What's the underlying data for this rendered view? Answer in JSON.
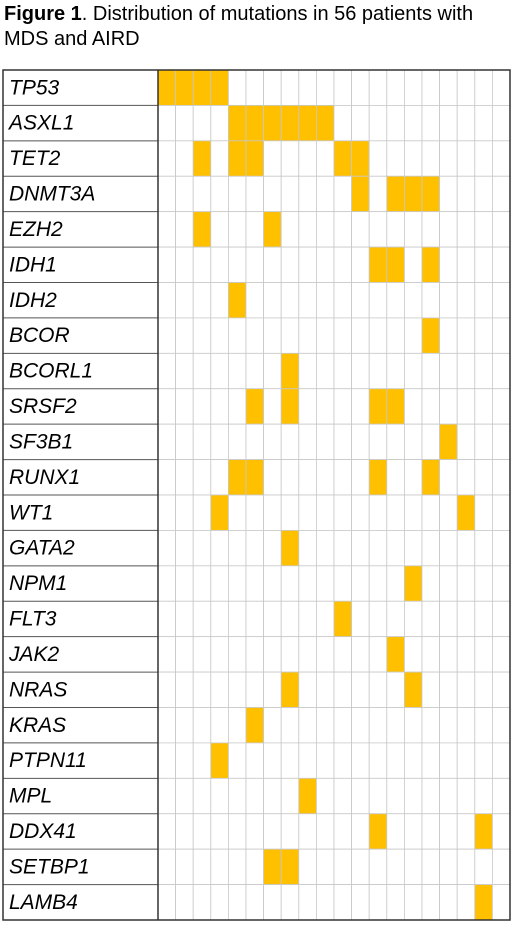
{
  "chart_data": {
    "type": "oncoprint",
    "title_label": "Figure 1",
    "title": ". Distribution of mutations in 56 patients with MDS and AIRD",
    "mutated_color": "#ffc000",
    "genes": [
      "TP53",
      "ASXL1",
      "TET2",
      "DNMT3A",
      "EZH2",
      "IDH1",
      "IDH2",
      "BCOR",
      "BCORL1",
      "SRSF2",
      "SF3B1",
      "RUNX1",
      "WT1",
      "GATA2",
      "NPM1",
      "FLT3",
      "JAK2",
      "NRAS",
      "KRAS",
      "PTPN11",
      "MPL",
      "DDX41",
      "SETBP1",
      "LAMB4"
    ],
    "matrix": [
      [
        1,
        1,
        1,
        1,
        0,
        0,
        0,
        0,
        0,
        0,
        0,
        0,
        0,
        0,
        0,
        0,
        0,
        0,
        0,
        0
      ],
      [
        0,
        0,
        0,
        0,
        1,
        1,
        1,
        1,
        1,
        1,
        0,
        0,
        0,
        0,
        0,
        0,
        0,
        0,
        0,
        0
      ],
      [
        0,
        0,
        1,
        0,
        1,
        1,
        0,
        0,
        0,
        0,
        1,
        1,
        0,
        0,
        0,
        0,
        0,
        0,
        0,
        0
      ],
      [
        0,
        0,
        0,
        0,
        0,
        0,
        0,
        0,
        0,
        0,
        0,
        1,
        0,
        1,
        1,
        1,
        0,
        0,
        0,
        0
      ],
      [
        0,
        0,
        1,
        0,
        0,
        0,
        1,
        0,
        0,
        0,
        0,
        0,
        0,
        0,
        0,
        0,
        0,
        0,
        0,
        0
      ],
      [
        0,
        0,
        0,
        0,
        0,
        0,
        0,
        0,
        0,
        0,
        0,
        0,
        1,
        1,
        0,
        1,
        0,
        0,
        0,
        0
      ],
      [
        0,
        0,
        0,
        0,
        1,
        0,
        0,
        0,
        0,
        0,
        0,
        0,
        0,
        0,
        0,
        0,
        0,
        0,
        0,
        0
      ],
      [
        0,
        0,
        0,
        0,
        0,
        0,
        0,
        0,
        0,
        0,
        0,
        0,
        0,
        0,
        0,
        1,
        0,
        0,
        0,
        0
      ],
      [
        0,
        0,
        0,
        0,
        0,
        0,
        0,
        1,
        0,
        0,
        0,
        0,
        0,
        0,
        0,
        0,
        0,
        0,
        0,
        0
      ],
      [
        0,
        0,
        0,
        0,
        0,
        1,
        0,
        1,
        0,
        0,
        0,
        0,
        1,
        1,
        0,
        0,
        0,
        0,
        0,
        0
      ],
      [
        0,
        0,
        0,
        0,
        0,
        0,
        0,
        0,
        0,
        0,
        0,
        0,
        0,
        0,
        0,
        0,
        1,
        0,
        0,
        0
      ],
      [
        0,
        0,
        0,
        0,
        1,
        1,
        0,
        0,
        0,
        0,
        0,
        0,
        1,
        0,
        0,
        1,
        0,
        0,
        0,
        0
      ],
      [
        0,
        0,
        0,
        1,
        0,
        0,
        0,
        0,
        0,
        0,
        0,
        0,
        0,
        0,
        0,
        0,
        0,
        1,
        0,
        0
      ],
      [
        0,
        0,
        0,
        0,
        0,
        0,
        0,
        1,
        0,
        0,
        0,
        0,
        0,
        0,
        0,
        0,
        0,
        0,
        0,
        0
      ],
      [
        0,
        0,
        0,
        0,
        0,
        0,
        0,
        0,
        0,
        0,
        0,
        0,
        0,
        0,
        1,
        0,
        0,
        0,
        0,
        0
      ],
      [
        0,
        0,
        0,
        0,
        0,
        0,
        0,
        0,
        0,
        0,
        1,
        0,
        0,
        0,
        0,
        0,
        0,
        0,
        0,
        0
      ],
      [
        0,
        0,
        0,
        0,
        0,
        0,
        0,
        0,
        0,
        0,
        0,
        0,
        0,
        1,
        0,
        0,
        0,
        0,
        0,
        0
      ],
      [
        0,
        0,
        0,
        0,
        0,
        0,
        0,
        1,
        0,
        0,
        0,
        0,
        0,
        0,
        1,
        0,
        0,
        0,
        0,
        0
      ],
      [
        0,
        0,
        0,
        0,
        0,
        1,
        0,
        0,
        0,
        0,
        0,
        0,
        0,
        0,
        0,
        0,
        0,
        0,
        0,
        0
      ],
      [
        0,
        0,
        0,
        1,
        0,
        0,
        0,
        0,
        0,
        0,
        0,
        0,
        0,
        0,
        0,
        0,
        0,
        0,
        0,
        0
      ],
      [
        0,
        0,
        0,
        0,
        0,
        0,
        0,
        0,
        1,
        0,
        0,
        0,
        0,
        0,
        0,
        0,
        0,
        0,
        0,
        0
      ],
      [
        0,
        0,
        0,
        0,
        0,
        0,
        0,
        0,
        0,
        0,
        0,
        0,
        1,
        0,
        0,
        0,
        0,
        0,
        1,
        0
      ],
      [
        0,
        0,
        0,
        0,
        0,
        0,
        1,
        1,
        0,
        0,
        0,
        0,
        0,
        0,
        0,
        0,
        0,
        0,
        0,
        0
      ],
      [
        0,
        0,
        0,
        0,
        0,
        0,
        0,
        0,
        0,
        0,
        0,
        0,
        0,
        0,
        0,
        0,
        0,
        0,
        1,
        0
      ]
    ]
  }
}
